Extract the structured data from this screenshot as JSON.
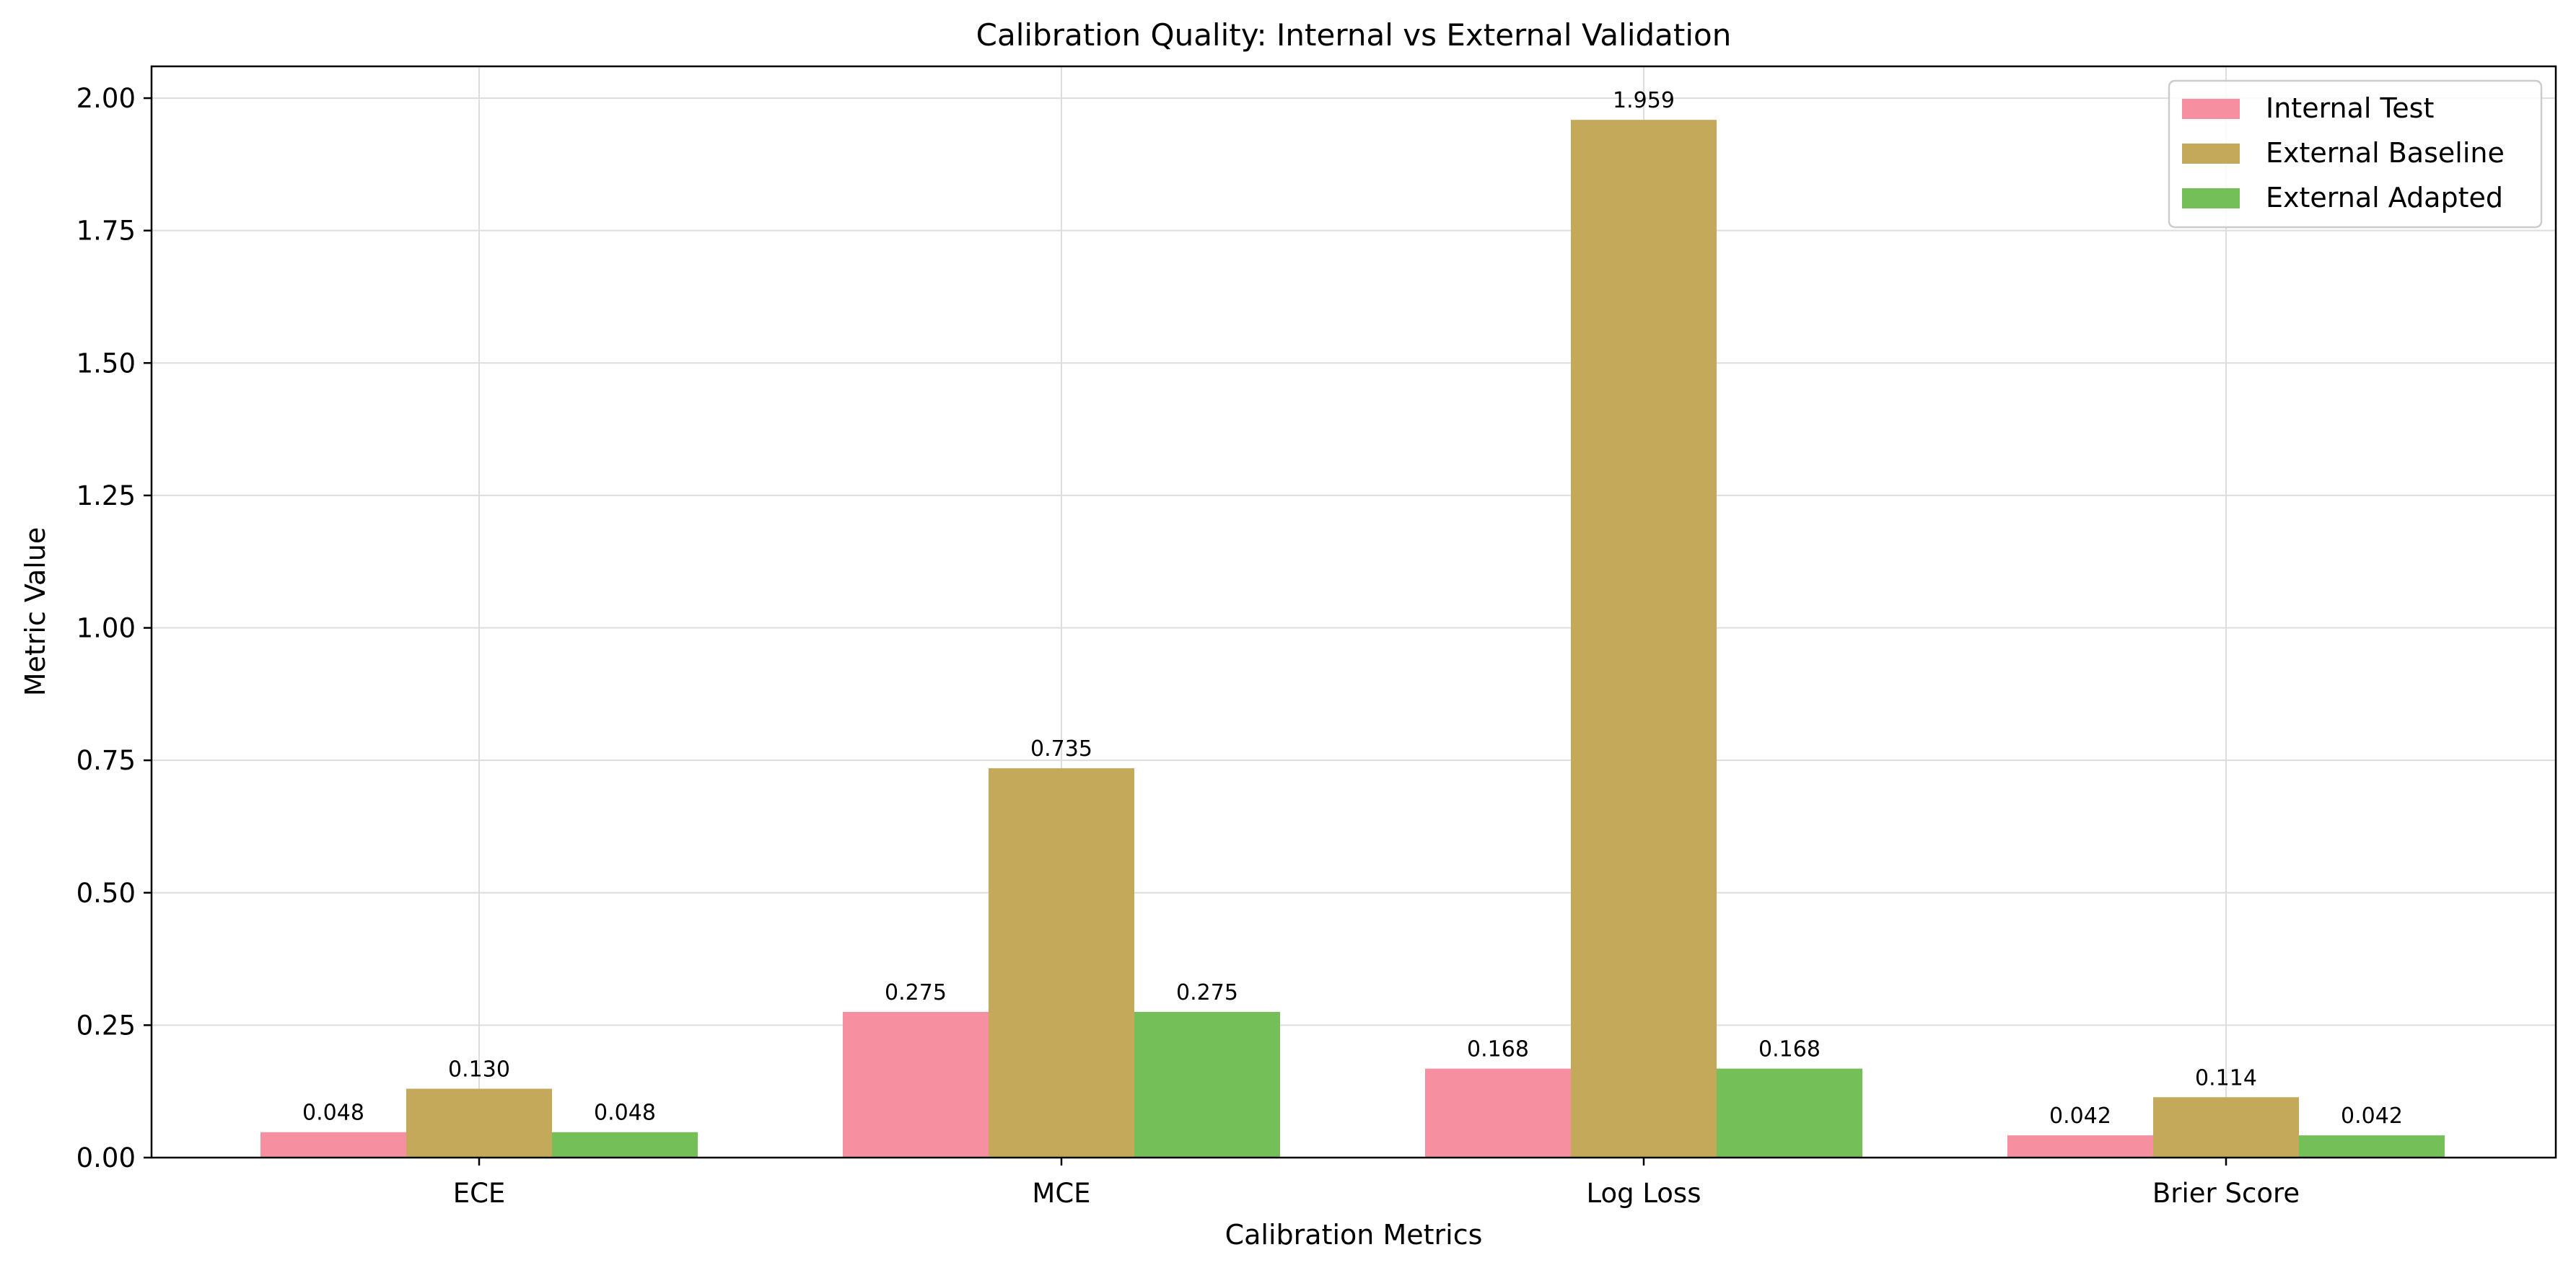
{
  "chart_data": {
    "type": "bar",
    "title": "Calibration Quality: Internal vs External Validation",
    "xlabel": "Calibration Metrics",
    "ylabel": "Metric Value",
    "categories": [
      "ECE",
      "MCE",
      "Log Loss",
      "Brier Score"
    ],
    "ylim": [
      0,
      2.06
    ],
    "yticks": [
      0,
      0.25,
      0.5,
      0.75,
      1.0,
      1.25,
      1.5,
      1.75,
      2.0
    ],
    "ytick_labels": [
      "0.00",
      "0.25",
      "0.50",
      "0.75",
      "1.00",
      "1.25",
      "1.50",
      "1.75",
      "2.00"
    ],
    "grid": true,
    "legend_position": "top-right",
    "series": [
      {
        "name": "Internal Test",
        "color": "#f68fa0",
        "values": [
          0.048,
          0.275,
          0.168,
          0.042
        ],
        "labels": [
          "0.048",
          "0.275",
          "0.168",
          "0.042"
        ]
      },
      {
        "name": "External Baseline",
        "color": "#c5a95a",
        "values": [
          0.13,
          0.735,
          1.959,
          0.114
        ],
        "labels": [
          "0.130",
          "0.735",
          "1.959",
          "0.114"
        ]
      },
      {
        "name": "External Adapted",
        "color": "#74bf57",
        "values": [
          0.048,
          0.275,
          0.168,
          0.042
        ],
        "labels": [
          "0.048",
          "0.275",
          "0.168",
          "0.042"
        ]
      }
    ]
  }
}
